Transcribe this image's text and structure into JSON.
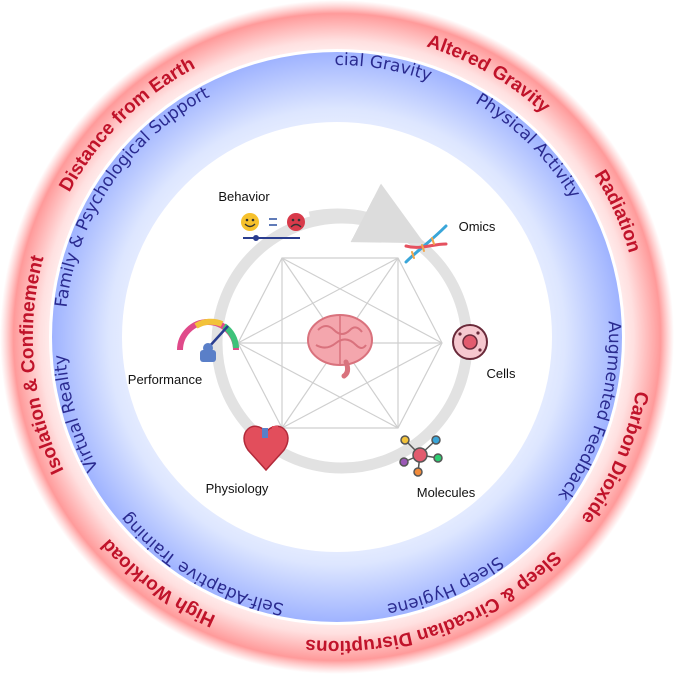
{
  "outer_ring": {
    "color": "#c0132a",
    "labels": [
      "Distance from Earth",
      "Altered Gravity",
      "Radiation",
      "Carbon Dioxide",
      "Sleep & Circadian Disruptions",
      "High Workload",
      "Isolation & Confinement"
    ]
  },
  "inner_ring": {
    "color": "#2a2a8f",
    "labels": [
      "Artificial Gravity",
      "Physical Activity",
      "Augmented Feedback",
      "Sleep Hygiene",
      "Self-Adaptive Training",
      "Virtual Reality",
      "Family & Psychological Support"
    ]
  },
  "nodes": [
    {
      "label": "Behavior",
      "icon": "emoji-mood-slider-icon"
    },
    {
      "label": "Omics",
      "icon": "dna-helix-icon"
    },
    {
      "label": "Cells",
      "icon": "cell-icon"
    },
    {
      "label": "Molecules",
      "icon": "molecule-icon"
    },
    {
      "label": "Physiology",
      "icon": "heart-icon"
    },
    {
      "label": "Performance",
      "icon": "gauge-icon"
    }
  ],
  "center": {
    "icon": "brain-icon"
  }
}
